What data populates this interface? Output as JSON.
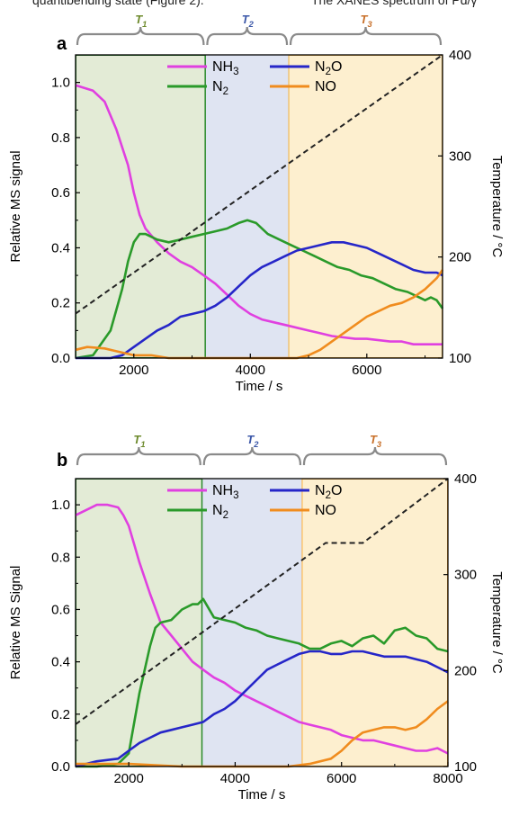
{
  "header_fragment": {
    "left": "quantibending state (Figure 2).",
    "right": "The XANES spectrum of Pd/γ"
  },
  "colors": {
    "NH3": "#e040e0",
    "N2O": "#2626c8",
    "N2": "#2a9a2a",
    "NO": "#f08c1e",
    "temperature": "#222222",
    "region_T1": "#e3ebd6",
    "region_T2": "#dfe4f2",
    "region_T3": "#fdefcf",
    "label_T1": "#6d8a2c",
    "label_T2": "#3b57a8",
    "label_T3": "#c8702a",
    "divider_T1_T2": "#2a8a2a",
    "divider_T2_T3_a": "#f0b040",
    "divider_T2_T3_b": "#e89a30",
    "frame_T3_a": "#f0b040",
    "frame_T3_b": "#ffb03c",
    "frame_T1": "#2a8a2a"
  },
  "chart_data": [
    {
      "panel_letter": "a",
      "type": "line",
      "xlabel": "Time / s",
      "ylabel": "Relative MS signal",
      "y2label": "Temperature / °C",
      "xlim": [
        1000,
        7300
      ],
      "ylim": [
        0,
        1.1
      ],
      "y2lim": [
        100,
        400
      ],
      "xticks": [
        "2000",
        "4000",
        "6000"
      ],
      "yticks": [
        "0.0",
        "0.2",
        "0.4",
        "0.6",
        "0.8",
        "1.0"
      ],
      "y2ticks": [
        "100",
        "200",
        "300",
        "400"
      ],
      "regions": [
        {
          "label": "T",
          "sub": "1",
          "from": 1000,
          "to": 3230
        },
        {
          "label": "T",
          "sub": "2",
          "from": 3230,
          "to": 4660
        },
        {
          "label": "T",
          "sub": "3",
          "from": 4660,
          "to": 7300
        }
      ],
      "legend": [
        {
          "series": "NH3",
          "text": "NH",
          "sub": "3",
          "tail": ""
        },
        {
          "series": "N2O",
          "text": "N",
          "sub": "2",
          "tail": "O"
        },
        {
          "series": "N2",
          "text": "N",
          "sub": "2",
          "tail": ""
        },
        {
          "series": "NO",
          "text": "NO",
          "sub": "",
          "tail": ""
        }
      ],
      "series": [
        {
          "name": "NH3",
          "x": [
            1000,
            1300,
            1500,
            1700,
            1900,
            2000,
            2100,
            2200,
            2400,
            2600,
            2800,
            3000,
            3200,
            3400,
            3600,
            3800,
            4000,
            4200,
            4400,
            4600,
            4800,
            5000,
            5200,
            5400,
            5600,
            5800,
            6000,
            6200,
            6400,
            6600,
            6800,
            7000,
            7200,
            7300
          ],
          "y": [
            0.99,
            0.97,
            0.93,
            0.83,
            0.7,
            0.6,
            0.52,
            0.47,
            0.42,
            0.38,
            0.35,
            0.33,
            0.3,
            0.27,
            0.23,
            0.19,
            0.16,
            0.14,
            0.13,
            0.12,
            0.11,
            0.1,
            0.09,
            0.08,
            0.075,
            0.07,
            0.07,
            0.065,
            0.06,
            0.06,
            0.05,
            0.05,
            0.05,
            0.05
          ]
        },
        {
          "name": "N2",
          "x": [
            1000,
            1300,
            1600,
            1800,
            1900,
            2000,
            2100,
            2200,
            2400,
            2600,
            2800,
            3000,
            3200,
            3400,
            3600,
            3800,
            3950,
            4100,
            4300,
            4500,
            4700,
            4900,
            5100,
            5300,
            5500,
            5700,
            5900,
            6100,
            6300,
            6500,
            6700,
            6900,
            7000,
            7100,
            7200,
            7300
          ],
          "y": [
            0.0,
            0.01,
            0.1,
            0.25,
            0.35,
            0.42,
            0.45,
            0.45,
            0.43,
            0.42,
            0.43,
            0.44,
            0.45,
            0.46,
            0.47,
            0.49,
            0.5,
            0.49,
            0.45,
            0.43,
            0.41,
            0.39,
            0.37,
            0.35,
            0.33,
            0.32,
            0.3,
            0.29,
            0.27,
            0.25,
            0.24,
            0.22,
            0.21,
            0.22,
            0.21,
            0.18
          ]
        },
        {
          "name": "N2O",
          "x": [
            1000,
            1300,
            1600,
            1800,
            2000,
            2200,
            2400,
            2600,
            2800,
            3000,
            3200,
            3400,
            3600,
            3800,
            4000,
            4200,
            4400,
            4600,
            4800,
            5000,
            5200,
            5400,
            5600,
            5800,
            6000,
            6200,
            6400,
            6600,
            6800,
            7000,
            7200,
            7300
          ],
          "y": [
            0.0,
            0.0,
            0.0,
            0.01,
            0.04,
            0.07,
            0.1,
            0.12,
            0.15,
            0.16,
            0.17,
            0.19,
            0.22,
            0.26,
            0.3,
            0.33,
            0.35,
            0.37,
            0.39,
            0.4,
            0.41,
            0.42,
            0.42,
            0.41,
            0.4,
            0.38,
            0.36,
            0.34,
            0.32,
            0.31,
            0.31,
            0.3
          ]
        },
        {
          "name": "NO",
          "x": [
            1000,
            1200,
            1500,
            1800,
            2000,
            2300,
            2600,
            3000,
            3500,
            4000,
            4500,
            4800,
            5000,
            5200,
            5400,
            5600,
            5800,
            6000,
            6200,
            6400,
            6600,
            6800,
            7000,
            7200,
            7300
          ],
          "y": [
            0.03,
            0.04,
            0.035,
            0.02,
            0.01,
            0.01,
            0.0,
            0.0,
            0.0,
            0.0,
            0.0,
            0.0,
            0.01,
            0.03,
            0.06,
            0.09,
            0.12,
            0.15,
            0.17,
            0.19,
            0.2,
            0.22,
            0.25,
            0.29,
            0.32
          ]
        },
        {
          "name": "temperature",
          "axis": "right",
          "style": "dashed",
          "x": [
            1000,
            7300
          ],
          "y": [
            144,
            400
          ]
        }
      ]
    },
    {
      "panel_letter": "b",
      "type": "line",
      "xlabel": "Time / s",
      "ylabel": "Relative MS Signal",
      "y2label": "Temperature / °C",
      "xlim": [
        1000,
        8000
      ],
      "ylim": [
        0,
        1.1
      ],
      "y2lim": [
        100,
        400
      ],
      "xticks": [
        "2000",
        "4000",
        "6000",
        "8000"
      ],
      "yticks": [
        "0.0",
        "0.2",
        "0.4",
        "0.6",
        "0.8",
        "1.0"
      ],
      "y2ticks": [
        "100",
        "200",
        "300",
        "400"
      ],
      "regions": [
        {
          "label": "T",
          "sub": "1",
          "from": 1000,
          "to": 3380
        },
        {
          "label": "T",
          "sub": "2",
          "from": 3380,
          "to": 5260
        },
        {
          "label": "T",
          "sub": "3",
          "from": 5260,
          "to": 8000
        }
      ],
      "legend": [
        {
          "series": "NH3",
          "text": "NH",
          "sub": "3",
          "tail": ""
        },
        {
          "series": "N2O",
          "text": "N",
          "sub": "2",
          "tail": "O"
        },
        {
          "series": "N2",
          "text": "N",
          "sub": "2",
          "tail": ""
        },
        {
          "series": "NO",
          "text": "NO",
          "sub": "",
          "tail": ""
        }
      ],
      "series": [
        {
          "name": "NH3",
          "x": [
            1000,
            1200,
            1400,
            1600,
            1800,
            1900,
            2000,
            2100,
            2200,
            2400,
            2600,
            2800,
            3000,
            3200,
            3400,
            3600,
            3800,
            4000,
            4200,
            4400,
            4600,
            4800,
            5000,
            5200,
            5400,
            5600,
            5800,
            6000,
            6200,
            6400,
            6600,
            6800,
            7000,
            7200,
            7400,
            7600,
            7800,
            8000
          ],
          "y": [
            0.96,
            0.98,
            1.0,
            1.0,
            0.99,
            0.96,
            0.92,
            0.85,
            0.78,
            0.66,
            0.55,
            0.5,
            0.45,
            0.4,
            0.37,
            0.34,
            0.32,
            0.29,
            0.27,
            0.25,
            0.23,
            0.21,
            0.19,
            0.17,
            0.16,
            0.15,
            0.14,
            0.12,
            0.11,
            0.1,
            0.1,
            0.09,
            0.08,
            0.07,
            0.06,
            0.06,
            0.07,
            0.05
          ]
        },
        {
          "name": "N2",
          "x": [
            1000,
            1400,
            1800,
            2000,
            2200,
            2400,
            2500,
            2600,
            2800,
            3000,
            3200,
            3300,
            3400,
            3600,
            3800,
            4000,
            4200,
            4400,
            4600,
            4800,
            5000,
            5200,
            5400,
            5600,
            5800,
            6000,
            6200,
            6400,
            6600,
            6800,
            7000,
            7200,
            7400,
            7600,
            7800,
            8000
          ],
          "y": [
            0.0,
            0.0,
            0.01,
            0.05,
            0.28,
            0.46,
            0.53,
            0.55,
            0.56,
            0.6,
            0.62,
            0.62,
            0.64,
            0.57,
            0.56,
            0.55,
            0.53,
            0.52,
            0.5,
            0.49,
            0.48,
            0.47,
            0.45,
            0.45,
            0.47,
            0.48,
            0.46,
            0.49,
            0.5,
            0.47,
            0.52,
            0.53,
            0.5,
            0.49,
            0.45,
            0.44
          ]
        },
        {
          "name": "N2O",
          "x": [
            1000,
            1400,
            1800,
            2000,
            2200,
            2400,
            2600,
            2800,
            3000,
            3200,
            3400,
            3600,
            3800,
            4000,
            4200,
            4400,
            4600,
            4800,
            5000,
            5200,
            5400,
            5600,
            5800,
            6000,
            6200,
            6400,
            6600,
            6800,
            7000,
            7200,
            7400,
            7600,
            7800,
            8000
          ],
          "y": [
            0.0,
            0.02,
            0.03,
            0.06,
            0.09,
            0.11,
            0.13,
            0.14,
            0.15,
            0.16,
            0.17,
            0.2,
            0.22,
            0.25,
            0.29,
            0.33,
            0.37,
            0.39,
            0.41,
            0.43,
            0.44,
            0.44,
            0.43,
            0.43,
            0.44,
            0.44,
            0.43,
            0.42,
            0.42,
            0.42,
            0.41,
            0.4,
            0.38,
            0.36
          ]
        },
        {
          "name": "NO",
          "x": [
            1000,
            2000,
            3000,
            4000,
            5000,
            5400,
            5800,
            6000,
            6200,
            6400,
            6600,
            6800,
            7000,
            7200,
            7400,
            7600,
            7800,
            8000
          ],
          "y": [
            0.01,
            0.01,
            0.0,
            0.0,
            0.0,
            0.01,
            0.03,
            0.06,
            0.1,
            0.13,
            0.14,
            0.15,
            0.15,
            0.14,
            0.15,
            0.18,
            0.22,
            0.25
          ]
        },
        {
          "name": "temperature",
          "axis": "right",
          "style": "dashed",
          "x": [
            1000,
            5700,
            6400,
            8000
          ],
          "y": [
            144,
            333,
            333,
            400
          ]
        }
      ]
    }
  ]
}
